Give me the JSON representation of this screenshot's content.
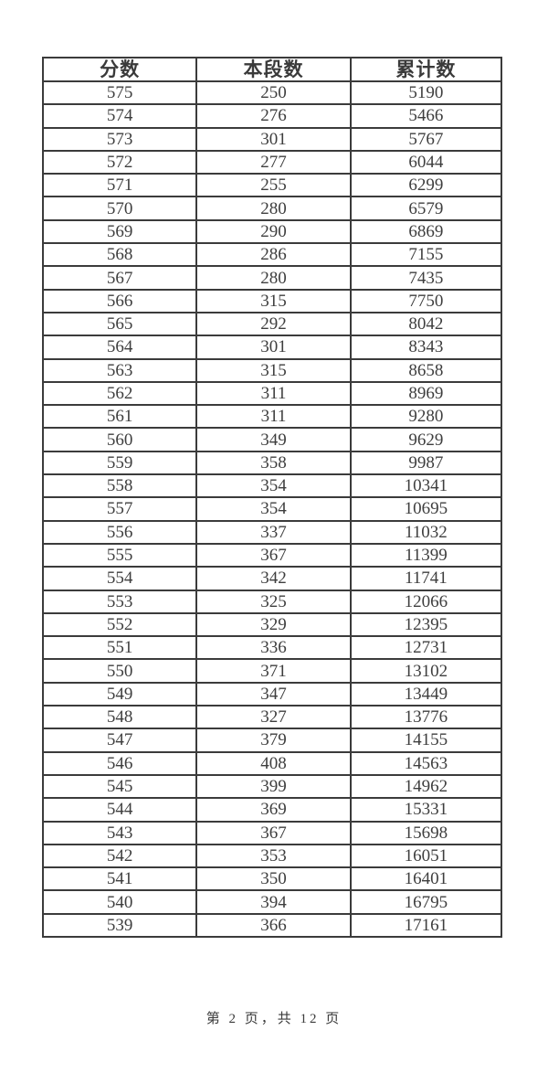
{
  "table": {
    "columns": [
      "分数",
      "本段数",
      "累计数"
    ],
    "column_keys": [
      "score",
      "segment_count",
      "cumulative_count"
    ],
    "rows": [
      [
        575,
        250,
        5190
      ],
      [
        574,
        276,
        5466
      ],
      [
        573,
        301,
        5767
      ],
      [
        572,
        277,
        6044
      ],
      [
        571,
        255,
        6299
      ],
      [
        570,
        280,
        6579
      ],
      [
        569,
        290,
        6869
      ],
      [
        568,
        286,
        7155
      ],
      [
        567,
        280,
        7435
      ],
      [
        566,
        315,
        7750
      ],
      [
        565,
        292,
        8042
      ],
      [
        564,
        301,
        8343
      ],
      [
        563,
        315,
        8658
      ],
      [
        562,
        311,
        8969
      ],
      [
        561,
        311,
        9280
      ],
      [
        560,
        349,
        9629
      ],
      [
        559,
        358,
        9987
      ],
      [
        558,
        354,
        10341
      ],
      [
        557,
        354,
        10695
      ],
      [
        556,
        337,
        11032
      ],
      [
        555,
        367,
        11399
      ],
      [
        554,
        342,
        11741
      ],
      [
        553,
        325,
        12066
      ],
      [
        552,
        329,
        12395
      ],
      [
        551,
        336,
        12731
      ],
      [
        550,
        371,
        13102
      ],
      [
        549,
        347,
        13449
      ],
      [
        548,
        327,
        13776
      ],
      [
        547,
        379,
        14155
      ],
      [
        546,
        408,
        14563
      ],
      [
        545,
        399,
        14962
      ],
      [
        544,
        369,
        15331
      ],
      [
        543,
        367,
        15698
      ],
      [
        542,
        353,
        16051
      ],
      [
        541,
        350,
        16401
      ],
      [
        540,
        394,
        16795
      ],
      [
        539,
        366,
        17161
      ]
    ]
  },
  "footer": {
    "page_text": "第 2 页，共 12 页",
    "current_page": "2",
    "total_pages": "12"
  },
  "colors": {
    "background": "#ffffff",
    "border": "#3b3b3b",
    "text": "#3a3a3a"
  }
}
